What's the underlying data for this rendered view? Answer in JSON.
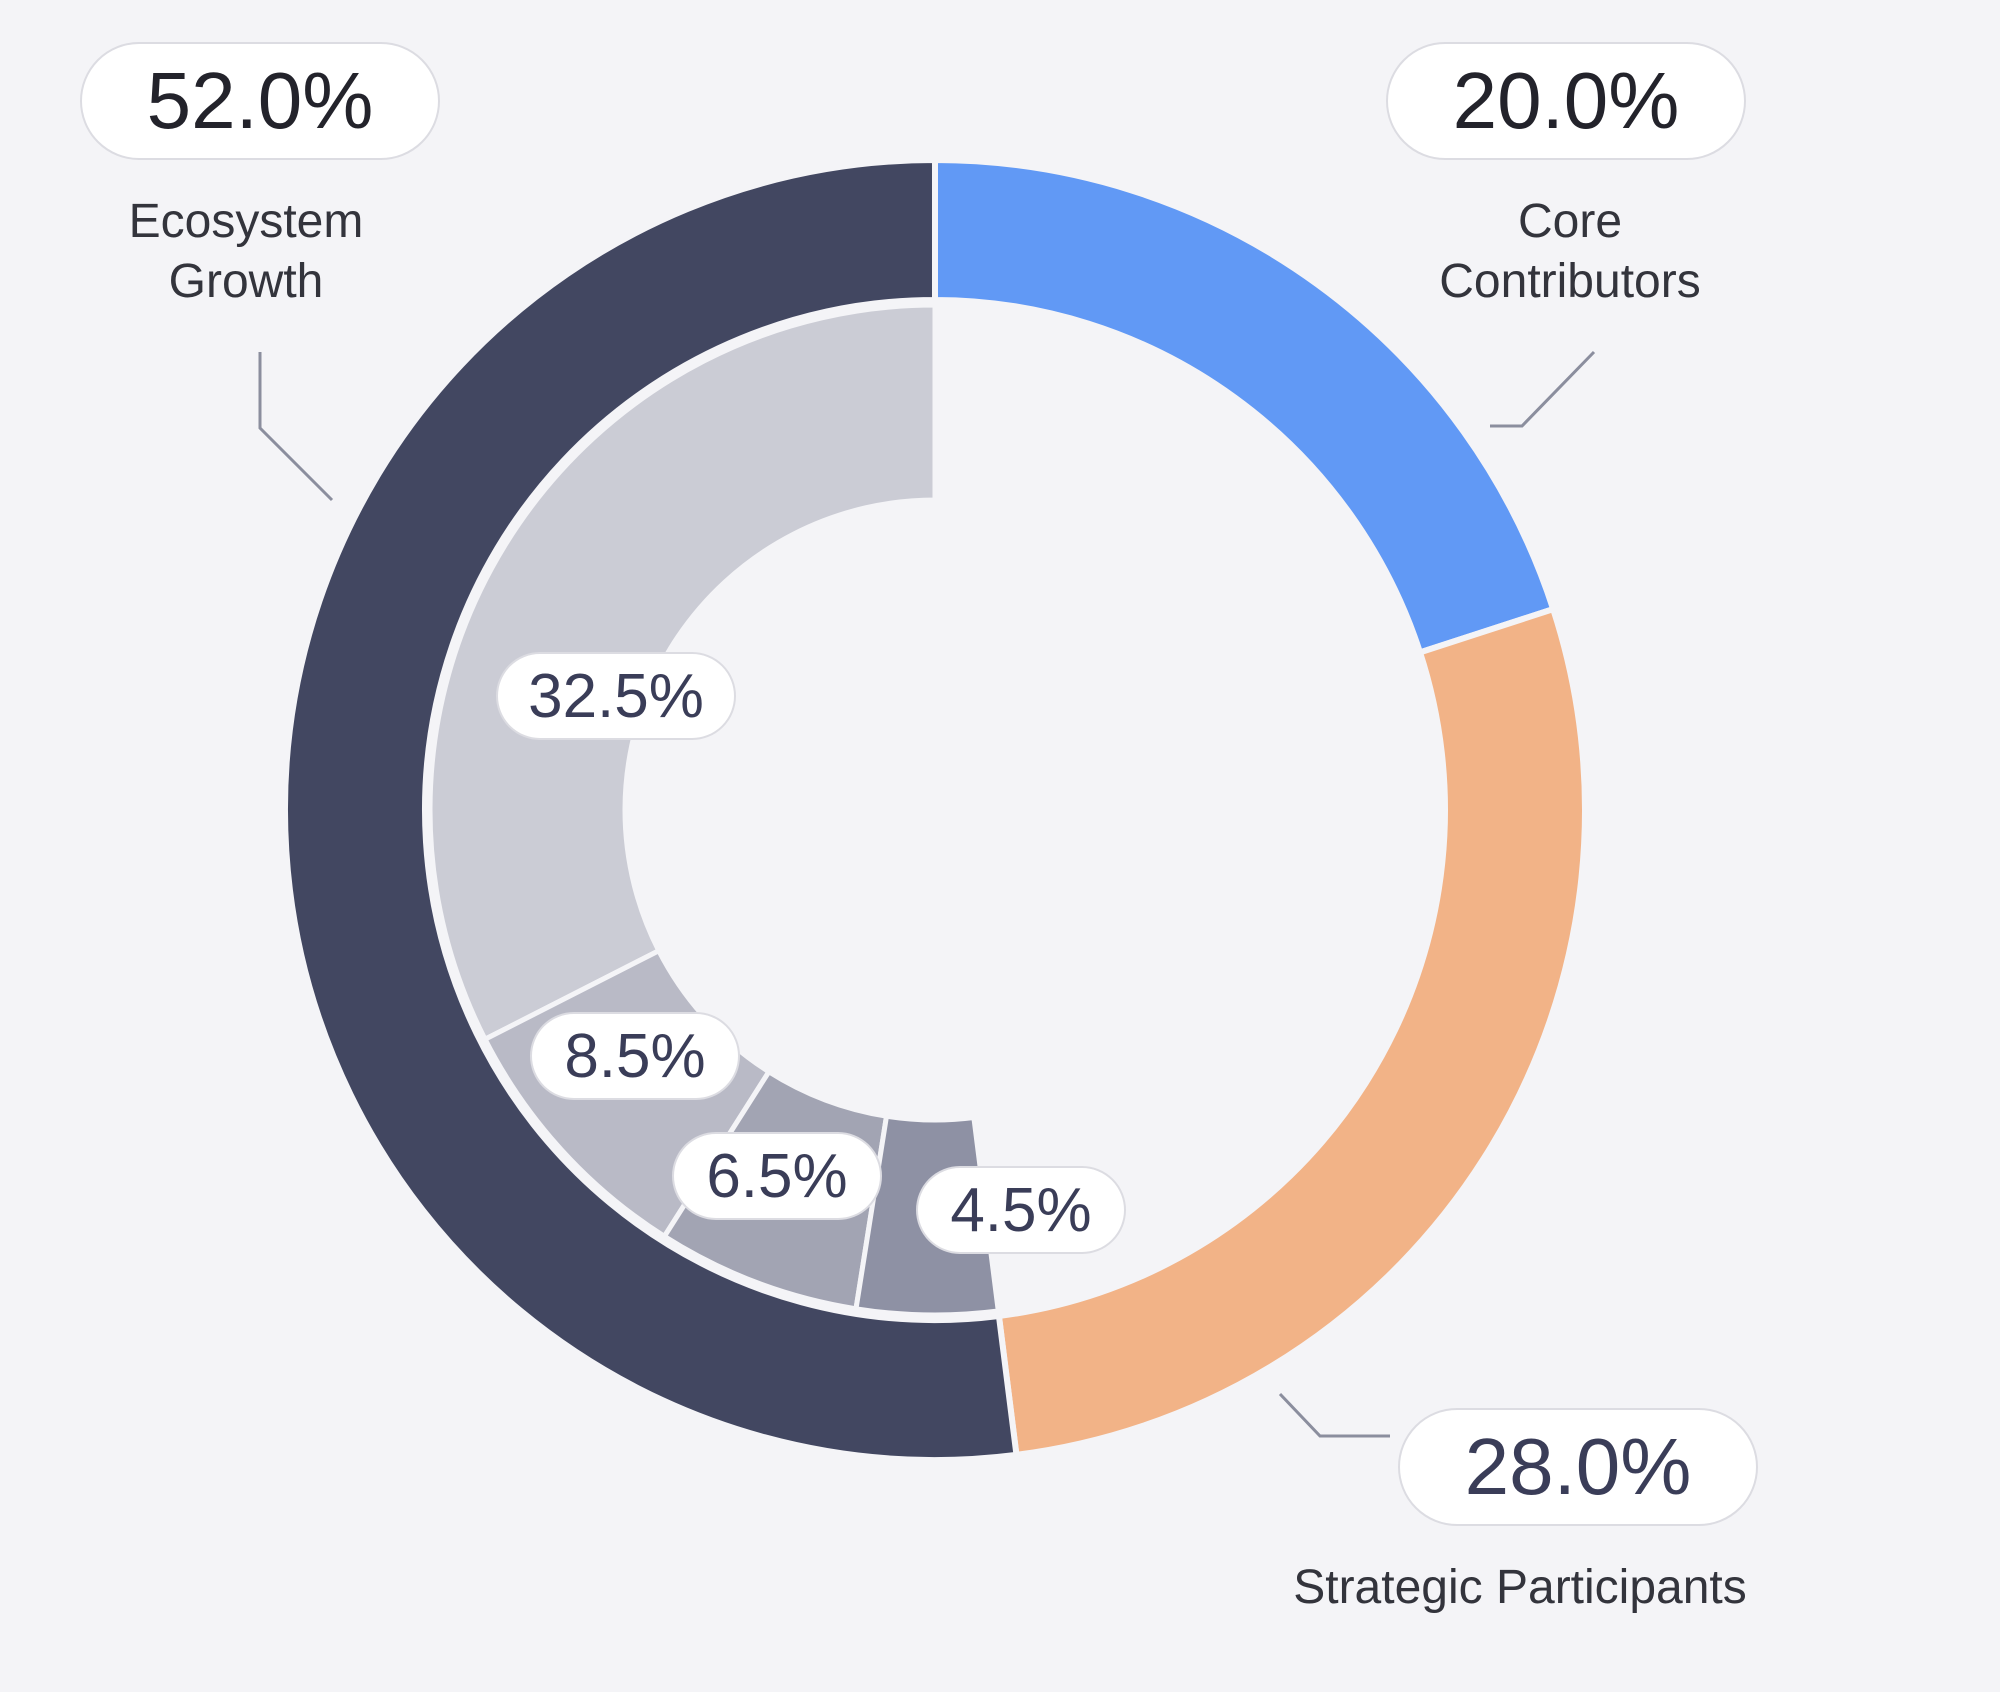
{
  "chart_data": {
    "type": "pie",
    "variant": "nested-donut",
    "colors": {
      "background": "#f4f4f7",
      "ecosystem_growth": "#424761",
      "core_contributors": "#6199f5",
      "strategic_participants": "#f2b387",
      "inner_1": "#cbccd5",
      "inner_2": "#b9bac6",
      "inner_3": "#a2a4b3",
      "inner_4": "#8e91a4"
    },
    "outer_ring": [
      {
        "label_lines": [
          "Ecosystem",
          "Growth"
        ],
        "value": 52.0,
        "value_label": "52.0%",
        "color_key": "ecosystem_growth"
      },
      {
        "label_lines": [
          "Core",
          "Contributors"
        ],
        "value": 20.0,
        "value_label": "20.0%",
        "color_key": "core_contributors"
      },
      {
        "label_lines": [
          "Strategic Participants"
        ],
        "value": 28.0,
        "value_label": "28.0%",
        "color_key": "strategic_participants"
      }
    ],
    "inner_ring": [
      {
        "value": 32.5,
        "value_label": "32.5%",
        "color_key": "inner_1"
      },
      {
        "value": 8.5,
        "value_label": "8.5%",
        "color_key": "inner_2"
      },
      {
        "value": 6.5,
        "value_label": "6.5%",
        "color_key": "inner_3"
      },
      {
        "value": 4.5,
        "value_label": "4.5%",
        "color_key": "inner_4"
      }
    ]
  }
}
